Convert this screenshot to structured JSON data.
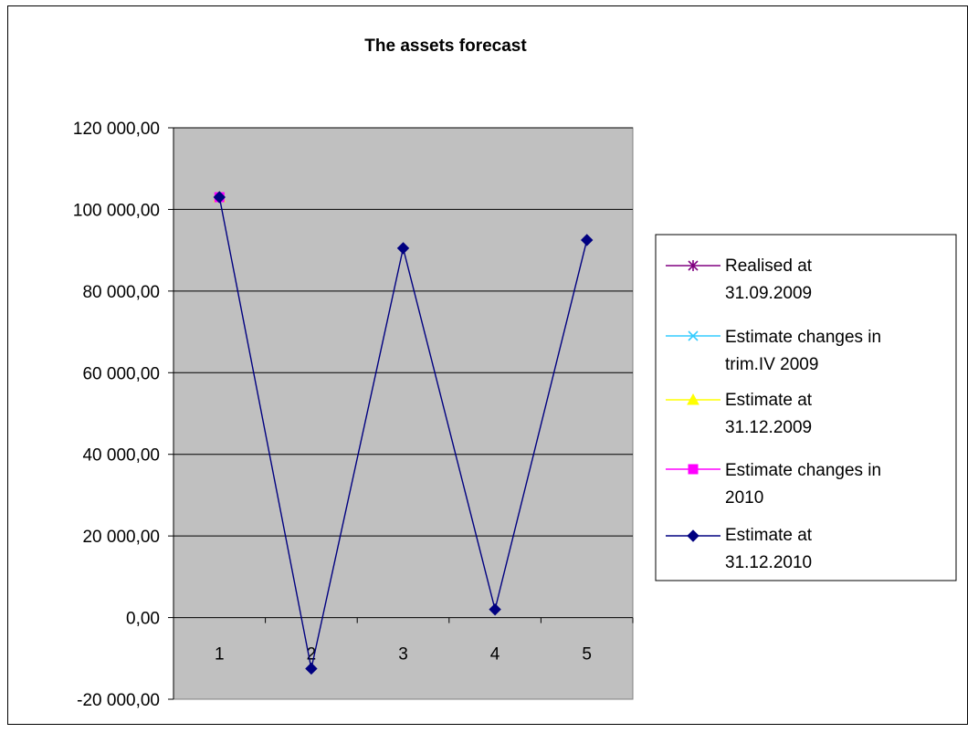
{
  "chart_data": {
    "type": "line",
    "title": "The assets forecast",
    "xlabel": "",
    "ylabel": "",
    "categories": [
      "1",
      "2",
      "3",
      "4",
      "5"
    ],
    "ylim": [
      -20000,
      120000
    ],
    "yticks": [
      120000,
      100000,
      80000,
      60000,
      40000,
      20000,
      0,
      -20000
    ],
    "ytick_labels": [
      "120 000,00",
      "100 000,00",
      "80 000,00",
      "60 000,00",
      "40 000,00",
      "20 000,00",
      "0,00",
      "-20 000,00"
    ],
    "grid": true,
    "plot_background": "#C0C0C0",
    "legend_position": "right",
    "series": [
      {
        "name": "Realised at 31.09.2009",
        "color": "#800080",
        "marker": "star",
        "values": [
          103000,
          null,
          null,
          null,
          null
        ]
      },
      {
        "name": "Estimate changes in trim.IV 2009",
        "color": "#33CCFF",
        "marker": "x",
        "values": [
          103000,
          null,
          null,
          null,
          null
        ]
      },
      {
        "name": "Estimate at 31.12.2009",
        "color": "#FFFF00",
        "marker": "triangle",
        "values": [
          103000,
          null,
          null,
          null,
          null
        ]
      },
      {
        "name": "Estimate changes in 2010",
        "color": "#FF00FF",
        "marker": "square",
        "values": [
          103000,
          null,
          null,
          null,
          null
        ]
      },
      {
        "name": "Estimate at 31.12.2010",
        "color": "#000080",
        "marker": "diamond",
        "values": [
          103000,
          -12500,
          90500,
          2000,
          92500
        ]
      }
    ]
  }
}
